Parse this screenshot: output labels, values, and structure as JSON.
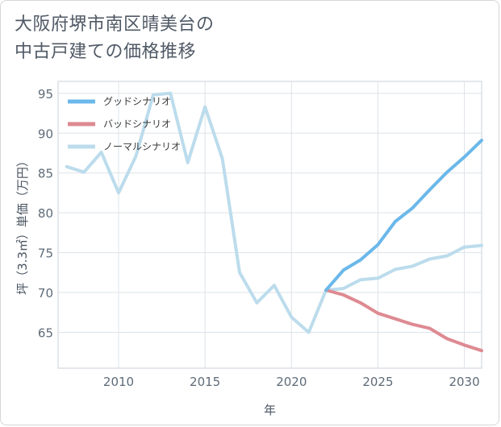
{
  "title": {
    "line1": "大阪府堺市南区晴美台の",
    "line2": "中古戸建ての価格推移"
  },
  "chart_data": {
    "type": "line",
    "xlabel": "年",
    "ylabel": "坪（3.3㎡）単価（万円）",
    "xlim": [
      2006.5,
      2031
    ],
    "ylim": [
      60.5,
      96.5
    ],
    "xticks": [
      2010,
      2015,
      2020,
      2025,
      2030
    ],
    "yticks": [
      65,
      70,
      75,
      80,
      85,
      90,
      95
    ],
    "grid": true,
    "legend_position": "top-left",
    "series": [
      {
        "name": "グッドシナリオ",
        "color": "#6bb8ea",
        "x": [
          2022,
          2023,
          2024,
          2025,
          2026,
          2027,
          2028,
          2029,
          2030,
          2031
        ],
        "values": [
          70.3,
          72.8,
          74.1,
          76.0,
          78.9,
          80.6,
          82.9,
          85.1,
          87.0,
          89.1
        ]
      },
      {
        "name": "バッドシナリオ",
        "color": "#de8a92",
        "x": [
          2022,
          2023,
          2024,
          2025,
          2026,
          2027,
          2028,
          2029,
          2030,
          2031
        ],
        "values": [
          70.3,
          69.7,
          68.7,
          67.4,
          66.7,
          66.0,
          65.5,
          64.2,
          63.4,
          62.7
        ]
      },
      {
        "name": "ノーマルシナリオ",
        "color": "#bcdcec",
        "x": [
          2007,
          2008,
          2009,
          2010,
          2011,
          2012,
          2013,
          2014,
          2015,
          2016,
          2017,
          2018,
          2019,
          2020,
          2021,
          2022,
          2023,
          2024,
          2025,
          2026,
          2027,
          2028,
          2029,
          2030,
          2031
        ],
        "values": [
          85.8,
          85.1,
          87.6,
          82.5,
          87.1,
          94.8,
          95.0,
          86.3,
          93.3,
          86.8,
          72.5,
          68.7,
          70.9,
          66.9,
          65.0,
          70.3,
          70.5,
          71.6,
          71.8,
          72.9,
          73.3,
          74.2,
          74.6,
          75.7,
          75.9
        ]
      }
    ]
  }
}
